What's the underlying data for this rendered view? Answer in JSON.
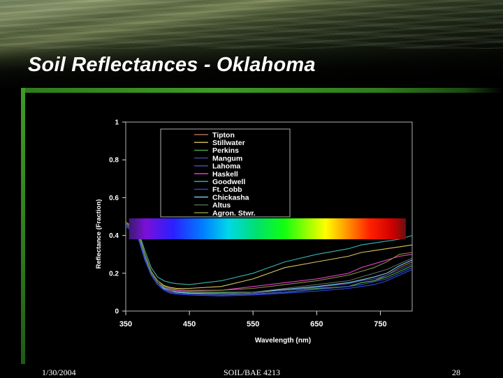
{
  "slide": {
    "title": "Soil Reflectances - Oklahoma",
    "footer_date": "1/30/2004",
    "footer_course": "SOIL/BAE 4213",
    "page_number": "28"
  },
  "colors": {
    "background": "#000000",
    "accent": "#3f9a26",
    "plot_background": "#000000",
    "plot_frame": "#b0b0b0",
    "text": "#ffffff"
  },
  "chart_data": {
    "type": "line",
    "xlabel": "Wavelength (nm)",
    "ylabel": "Reflectance (Fraction)",
    "xlim": [
      350,
      800
    ],
    "ylim": [
      0,
      1
    ],
    "xticks": [
      350,
      450,
      550,
      650,
      750
    ],
    "yticks": [
      0,
      0.2,
      0.4,
      0.6,
      0.8,
      1
    ],
    "ytick_labels": [
      "0",
      "0.2",
      "0.4",
      "0.6",
      "0.8",
      "1"
    ],
    "grid": false,
    "legend_position": "top-center",
    "x": [
      350,
      360,
      370,
      380,
      390,
      400,
      410,
      420,
      430,
      450,
      500,
      550,
      600,
      650,
      700,
      720,
      740,
      760,
      780,
      800
    ],
    "spectrum_band": {
      "from_nm": 355,
      "to_nm": 790,
      "y_center": 0.435
    },
    "series": [
      {
        "name": "Tipton",
        "color": "#a86a5a",
        "values": [
          0.47,
          0.44,
          0.4,
          0.29,
          0.2,
          0.15,
          0.125,
          0.11,
          0.1,
          0.095,
          0.09,
          0.09,
          0.1,
          0.115,
          0.13,
          0.15,
          0.16,
          0.19,
          0.23,
          0.26
        ]
      },
      {
        "name": "Stillwater",
        "color": "#d7c75a",
        "values": [
          0.47,
          0.45,
          0.41,
          0.3,
          0.21,
          0.16,
          0.135,
          0.125,
          0.12,
          0.12,
          0.13,
          0.17,
          0.23,
          0.26,
          0.29,
          0.31,
          0.32,
          0.33,
          0.34,
          0.35
        ]
      },
      {
        "name": "Perkins",
        "color": "#3fb04a",
        "values": [
          0.46,
          0.44,
          0.4,
          0.29,
          0.2,
          0.15,
          0.12,
          0.11,
          0.105,
          0.1,
          0.1,
          0.1,
          0.11,
          0.12,
          0.13,
          0.15,
          0.16,
          0.18,
          0.21,
          0.24
        ]
      },
      {
        "name": "Mangum",
        "color": "#4a4aa0",
        "values": [
          0.46,
          0.43,
          0.39,
          0.28,
          0.2,
          0.15,
          0.12,
          0.105,
          0.1,
          0.095,
          0.09,
          0.095,
          0.11,
          0.125,
          0.145,
          0.16,
          0.17,
          0.19,
          0.22,
          0.25
        ]
      },
      {
        "name": "Lahoma",
        "color": "#3a58c8",
        "values": [
          0.45,
          0.43,
          0.39,
          0.28,
          0.19,
          0.14,
          0.115,
          0.1,
          0.095,
          0.09,
          0.085,
          0.09,
          0.1,
          0.115,
          0.13,
          0.14,
          0.155,
          0.17,
          0.2,
          0.23
        ]
      },
      {
        "name": "Haskell",
        "color": "#e040c8",
        "values": [
          0.46,
          0.44,
          0.4,
          0.29,
          0.2,
          0.15,
          0.125,
          0.115,
          0.11,
          0.105,
          0.11,
          0.13,
          0.15,
          0.17,
          0.2,
          0.23,
          0.25,
          0.27,
          0.29,
          0.3
        ]
      },
      {
        "name": "Goodwell",
        "color": "#3ab6b0",
        "values": [
          0.47,
          0.45,
          0.42,
          0.32,
          0.23,
          0.18,
          0.16,
          0.15,
          0.145,
          0.14,
          0.16,
          0.2,
          0.26,
          0.3,
          0.33,
          0.35,
          0.36,
          0.37,
          0.38,
          0.4
        ]
      },
      {
        "name": "Ft. Cobb",
        "color": "#2a4ae8",
        "values": [
          0.45,
          0.42,
          0.38,
          0.27,
          0.19,
          0.14,
          0.11,
          0.095,
          0.09,
          0.085,
          0.08,
          0.085,
          0.095,
          0.105,
          0.12,
          0.13,
          0.14,
          0.16,
          0.19,
          0.22
        ]
      },
      {
        "name": "Chickasha",
        "color": "#7ad0ff",
        "values": [
          0.46,
          0.44,
          0.4,
          0.29,
          0.2,
          0.15,
          0.12,
          0.11,
          0.1,
          0.095,
          0.095,
          0.1,
          0.115,
          0.13,
          0.15,
          0.165,
          0.18,
          0.2,
          0.24,
          0.27
        ]
      },
      {
        "name": "Altus",
        "color": "#5a6a5a",
        "values": [
          0.46,
          0.44,
          0.4,
          0.29,
          0.2,
          0.15,
          0.125,
          0.11,
          0.105,
          0.1,
          0.095,
          0.1,
          0.12,
          0.14,
          0.16,
          0.18,
          0.2,
          0.22,
          0.25,
          0.28
        ]
      },
      {
        "name": "Agron. Stwr.",
        "color": "#8a8e3a",
        "values": [
          0.47,
          0.45,
          0.41,
          0.3,
          0.21,
          0.16,
          0.13,
          0.12,
          0.115,
          0.11,
          0.11,
          0.12,
          0.14,
          0.16,
          0.19,
          0.21,
          0.23,
          0.26,
          0.3,
          0.31
        ]
      }
    ]
  }
}
